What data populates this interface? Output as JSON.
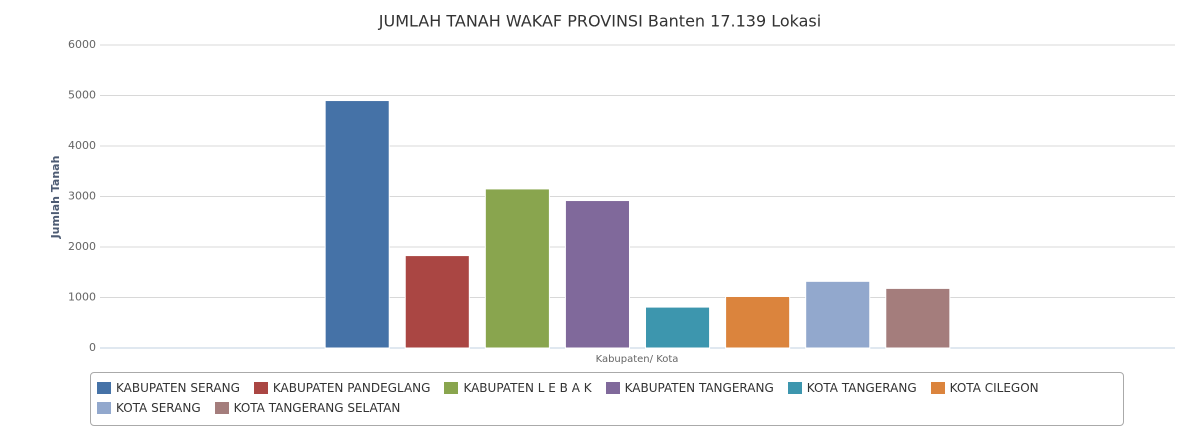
{
  "chart_data": {
    "type": "bar",
    "title": "JUMLAH TANAH WAKAF PROVINSI Banten 17.139 Lokasi",
    "x_label": "Kabupaten/ Kota",
    "y_label": "Jumlah Tanah",
    "categories": [
      null
    ],
    "series": [
      {
        "name": "KABUPATEN SERANG",
        "color": "#4572a7",
        "values": [
          4900
        ]
      },
      {
        "name": "KABUPATEN PANDEGLANG",
        "color": "#aa4643",
        "values": [
          1830
        ]
      },
      {
        "name": "KABUPATEN L E B A K",
        "color": "#89a54e",
        "values": [
          3150
        ]
      },
      {
        "name": "KABUPATEN TANGERANG",
        "color": "#80699b",
        "values": [
          2920
        ]
      },
      {
        "name": "KOTA TANGERANG",
        "color": "#3d96ae",
        "values": [
          810
        ]
      },
      {
        "name": "KOTA CILEGON",
        "color": "#db843d",
        "values": [
          1020
        ]
      },
      {
        "name": "KOTA SERANG",
        "color": "#92a8cd",
        "values": [
          1320
        ]
      },
      {
        "name": "KOTA TANGERANG SELATAN",
        "color": "#a47d7c",
        "values": [
          1180
        ]
      }
    ],
    "ylim": [
      0,
      6000
    ],
    "yticks": [
      0,
      1000,
      2000,
      3000,
      4000,
      5000,
      6000
    ],
    "grid": true,
    "legend": "bottom"
  }
}
